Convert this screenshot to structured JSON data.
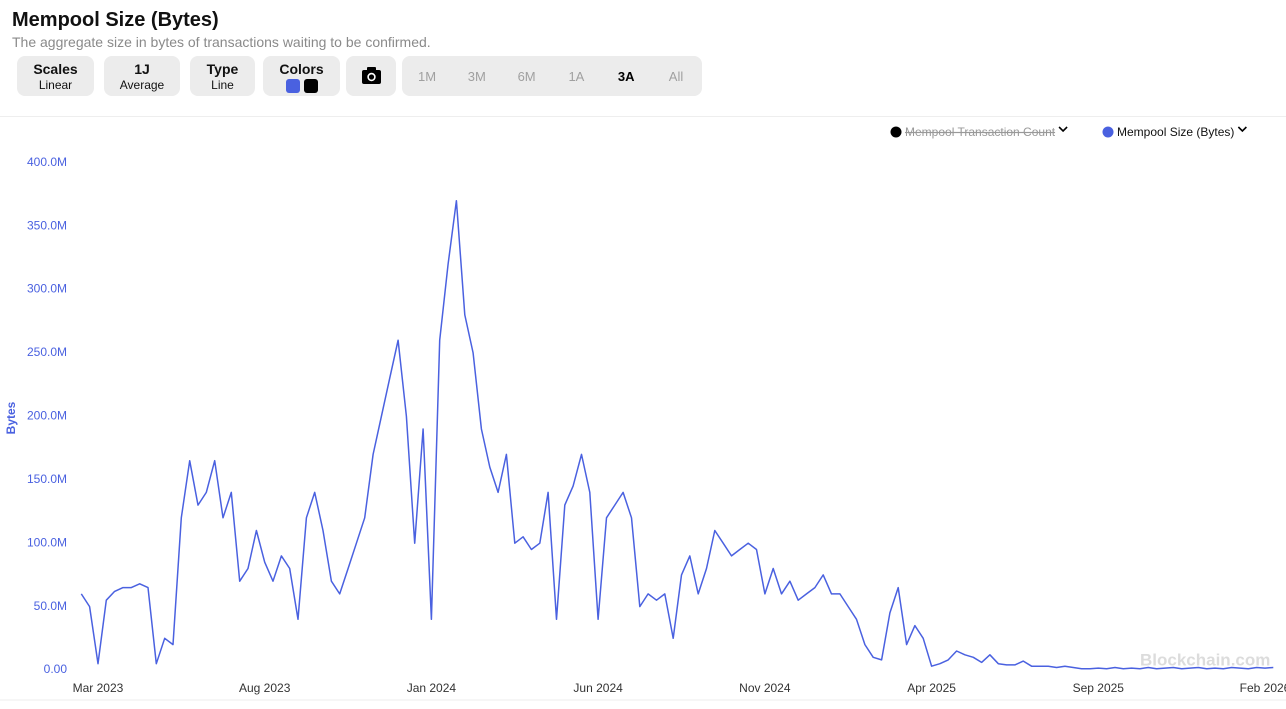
{
  "header": {
    "title": "Mempool Size (Bytes)",
    "subtitle": "The aggregate size in bytes of transactions waiting to be confirmed."
  },
  "controls": {
    "scales": {
      "label": "Scales",
      "value": "Linear"
    },
    "average": {
      "label": "1J",
      "value": "Average"
    },
    "type": {
      "label": "Type",
      "value": "Line"
    },
    "colors": {
      "label": "Colors",
      "swatches": [
        "#4a61e0",
        "#000000"
      ]
    },
    "ranges": [
      "1M",
      "3M",
      "6M",
      "1A",
      "3A",
      "All"
    ],
    "active_range_index": 4
  },
  "watermark": "Blockchain.com",
  "chart_data": {
    "type": "line",
    "y_label": "Bytes",
    "categories": [
      null,
      null,
      "Mar 2023",
      null,
      null,
      null,
      null,
      null,
      null,
      null,
      null,
      null,
      null,
      null,
      null,
      null,
      null,
      null,
      null,
      null,
      null,
      null,
      "Aug 2023",
      null,
      null,
      null,
      null,
      null,
      null,
      null,
      null,
      null,
      null,
      null,
      null,
      null,
      null,
      null,
      null,
      null,
      null,
      null,
      "Jan 2024",
      null,
      null,
      null,
      null,
      null,
      null,
      null,
      null,
      null,
      null,
      null,
      null,
      null,
      null,
      null,
      null,
      null,
      null,
      null,
      "Jun 2024",
      null,
      null,
      null,
      null,
      null,
      null,
      null,
      null,
      null,
      null,
      null,
      null,
      null,
      null,
      null,
      null,
      null,
      null,
      null,
      "Nov 2024",
      null,
      null,
      null,
      null,
      null,
      null,
      null,
      null,
      null,
      null,
      null,
      null,
      null,
      null,
      null,
      null,
      null,
      null,
      null,
      "Apr 2025",
      null,
      null,
      null,
      null,
      null,
      null,
      null,
      null,
      null,
      null,
      null,
      null,
      null,
      null,
      null,
      null,
      null,
      null,
      null,
      "Sep 2025",
      null,
      null,
      null,
      null,
      null,
      null,
      null,
      null,
      null,
      null,
      null,
      null,
      null,
      null,
      null,
      null,
      null,
      null,
      null,
      "Feb 2026",
      null
    ],
    "series": [
      {
        "name": "Mempool Transaction Count",
        "color": "#000000",
        "hidden": true
      },
      {
        "name": "Mempool Size (Bytes)",
        "color": "#4a61e0",
        "hidden": false,
        "values": [
          60000000.0,
          50000000.0,
          5000000.0,
          55000000.0,
          62000000.0,
          65000000.0,
          65000000.0,
          68000000.0,
          65000000.0,
          5000000.0,
          25000000.0,
          20000000.0,
          120000000.0,
          165000000.0,
          130000000.0,
          140000000.0,
          165000000.0,
          120000000.0,
          140000000.0,
          70000000.0,
          80000000.0,
          110000000.0,
          85000000.0,
          70000000.0,
          90000000.0,
          80000000.0,
          40000000.0,
          120000000.0,
          140000000.0,
          110000000.0,
          70000000.0,
          60000000.0,
          80000000.0,
          100000000.0,
          120000000.0,
          170000000.0,
          200000000.0,
          230000000.0,
          260000000.0,
          200000000.0,
          100000000.0,
          190000000.0,
          40000000.0,
          260000000.0,
          320000000.0,
          370000000.0,
          280000000.0,
          250000000.0,
          190000000.0,
          160000000.0,
          140000000.0,
          170000000.0,
          100000000.0,
          105000000.0,
          95000000.0,
          100000000.0,
          140000000.0,
          40000000.0,
          130000000.0,
          145000000.0,
          170000000.0,
          140000000.0,
          40000000.0,
          120000000.0,
          130000000.0,
          140000000.0,
          120000000.0,
          50000000.0,
          60000000.0,
          55000000.0,
          60000000.0,
          25000000.0,
          75000000.0,
          90000000.0,
          60000000.0,
          80000000.0,
          110000000.0,
          100000000.0,
          90000000.0,
          95000000.0,
          100000000.0,
          95000000.0,
          60000000.0,
          80000000.0,
          60000000.0,
          70000000.0,
          55000000.0,
          60000000.0,
          65000000.0,
          75000000.0,
          60000000.0,
          60000000.0,
          50000000.0,
          40000000.0,
          20000000.0,
          10000000.0,
          8000000.0,
          45000000.0,
          65000000.0,
          20000000.0,
          35000000.0,
          25000000.0,
          3000000.0,
          5000000.0,
          8000000.0,
          15000000.0,
          12000000.0,
          10000000.0,
          6000000.0,
          12000000.0,
          5000000.0,
          4000000.0,
          4000000.0,
          7000000.0,
          3000000.0,
          3000000.0,
          3000000.0,
          2000000.0,
          3000000.0,
          2000000.0,
          1000000.0,
          1000000.0,
          1500000.0,
          1000000.0,
          2000000.0,
          1000000.0,
          1500000.0,
          1000000.0,
          2000000.0,
          1000000.0,
          1500000.0,
          2000000.0,
          1000000.0,
          1500000.0,
          2000000.0,
          1000000.0,
          1500000.0,
          1000000.0,
          2000000.0,
          1500000.0,
          1000000.0,
          2000000.0,
          1500000.0,
          2000000.0
        ]
      }
    ],
    "ylim": [
      0,
      410000000
    ],
    "yticks": [
      {
        "value": 0,
        "label": "0.00"
      },
      {
        "value": 50000000,
        "label": "50.0M"
      },
      {
        "value": 100000000,
        "label": "100.0M"
      },
      {
        "value": 150000000,
        "label": "150.0M"
      },
      {
        "value": 200000000,
        "label": "200.0M"
      },
      {
        "value": 250000000,
        "label": "250.0M"
      },
      {
        "value": 300000000,
        "label": "300.0M"
      },
      {
        "value": 350000000,
        "label": "350.0M"
      },
      {
        "value": 400000000,
        "label": "400.0M"
      }
    ],
    "grid": false
  }
}
